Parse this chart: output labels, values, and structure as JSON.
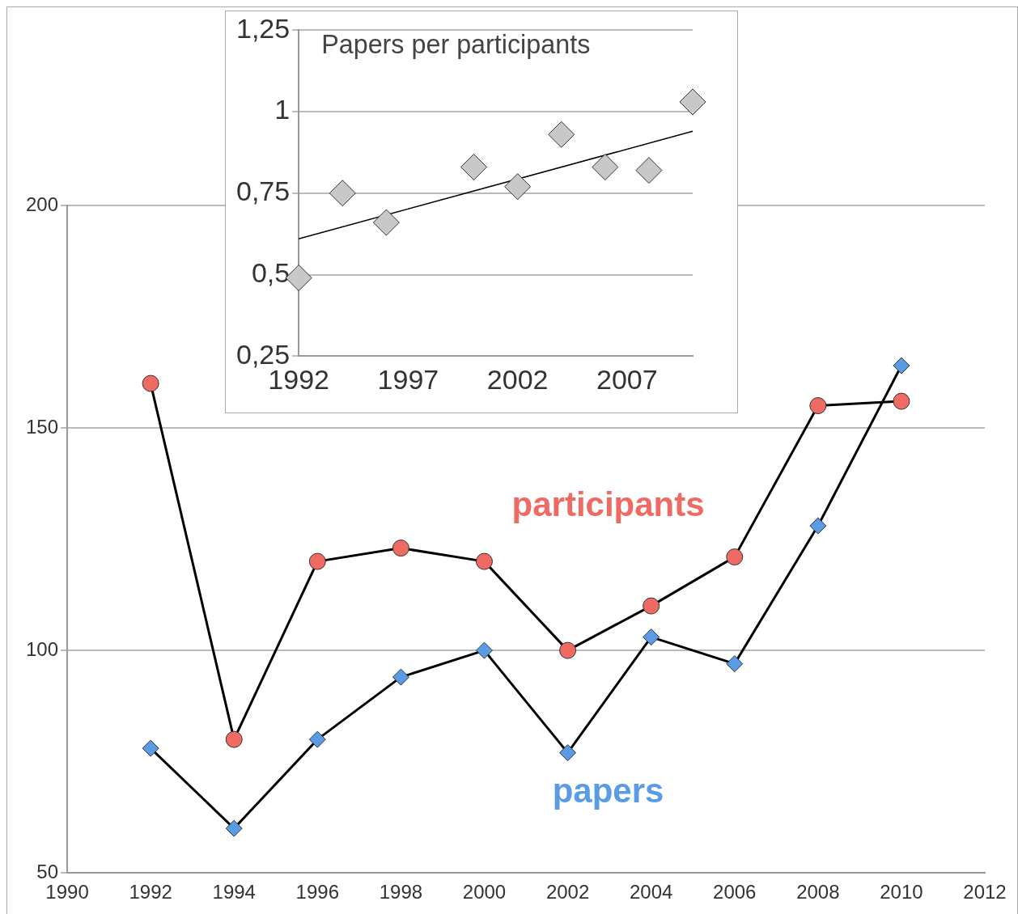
{
  "chart_data": [
    {
      "type": "line",
      "x": [
        1992,
        1994,
        1996,
        1998,
        2000,
        2002,
        2004,
        2006,
        2008,
        2010
      ],
      "series": [
        {
          "name": "participants",
          "color": "#ee6a62",
          "marker": "circle",
          "values": [
            160,
            80,
            120,
            123,
            120,
            100,
            110,
            121,
            155,
            156
          ]
        },
        {
          "name": "papers",
          "color": "#5a9be6",
          "marker": "diamond",
          "values": [
            78,
            60,
            80,
            94,
            100,
            77,
            103,
            97,
            128,
            164
          ]
        }
      ],
      "xlim": [
        1990,
        2012
      ],
      "xticks": [
        1990,
        1992,
        1994,
        1996,
        1998,
        2000,
        2002,
        2004,
        2006,
        2008,
        2010,
        2012
      ],
      "ylim": [
        50,
        200
      ],
      "yticks": [
        50,
        100,
        150,
        200
      ],
      "grid": "y",
      "legend": false,
      "line_style": "solid"
    },
    {
      "type": "scatter",
      "title": "Papers per participants",
      "series": [
        {
          "color": "#c8c8c8",
          "marker": "diamond",
          "x": [
            1992,
            1994,
            1996,
            2000,
            2002,
            2004,
            2006,
            2008,
            2010
          ],
          "values": [
            0.49,
            0.75,
            0.66,
            0.83,
            0.77,
            0.93,
            0.83,
            0.82,
            1.03
          ]
        },
        {
          "type": "line",
          "color": "#000000",
          "marker": "none",
          "x": [
            1992,
            2010
          ],
          "values": [
            0.61,
            0.94
          ]
        }
      ],
      "xlim": [
        1992,
        2010
      ],
      "xticks": [
        1992,
        1997,
        2002,
        2007
      ],
      "ylim": [
        0.25,
        1.25
      ],
      "yticks": [
        {
          "value": 0.25,
          "label": "0,25"
        },
        {
          "value": 0.5,
          "label": "0,5"
        },
        {
          "value": 0.75,
          "label": "0,75"
        },
        1,
        {
          "value": 1.25,
          "label": "1,25"
        }
      ],
      "grid": "y",
      "legend": false
    }
  ]
}
